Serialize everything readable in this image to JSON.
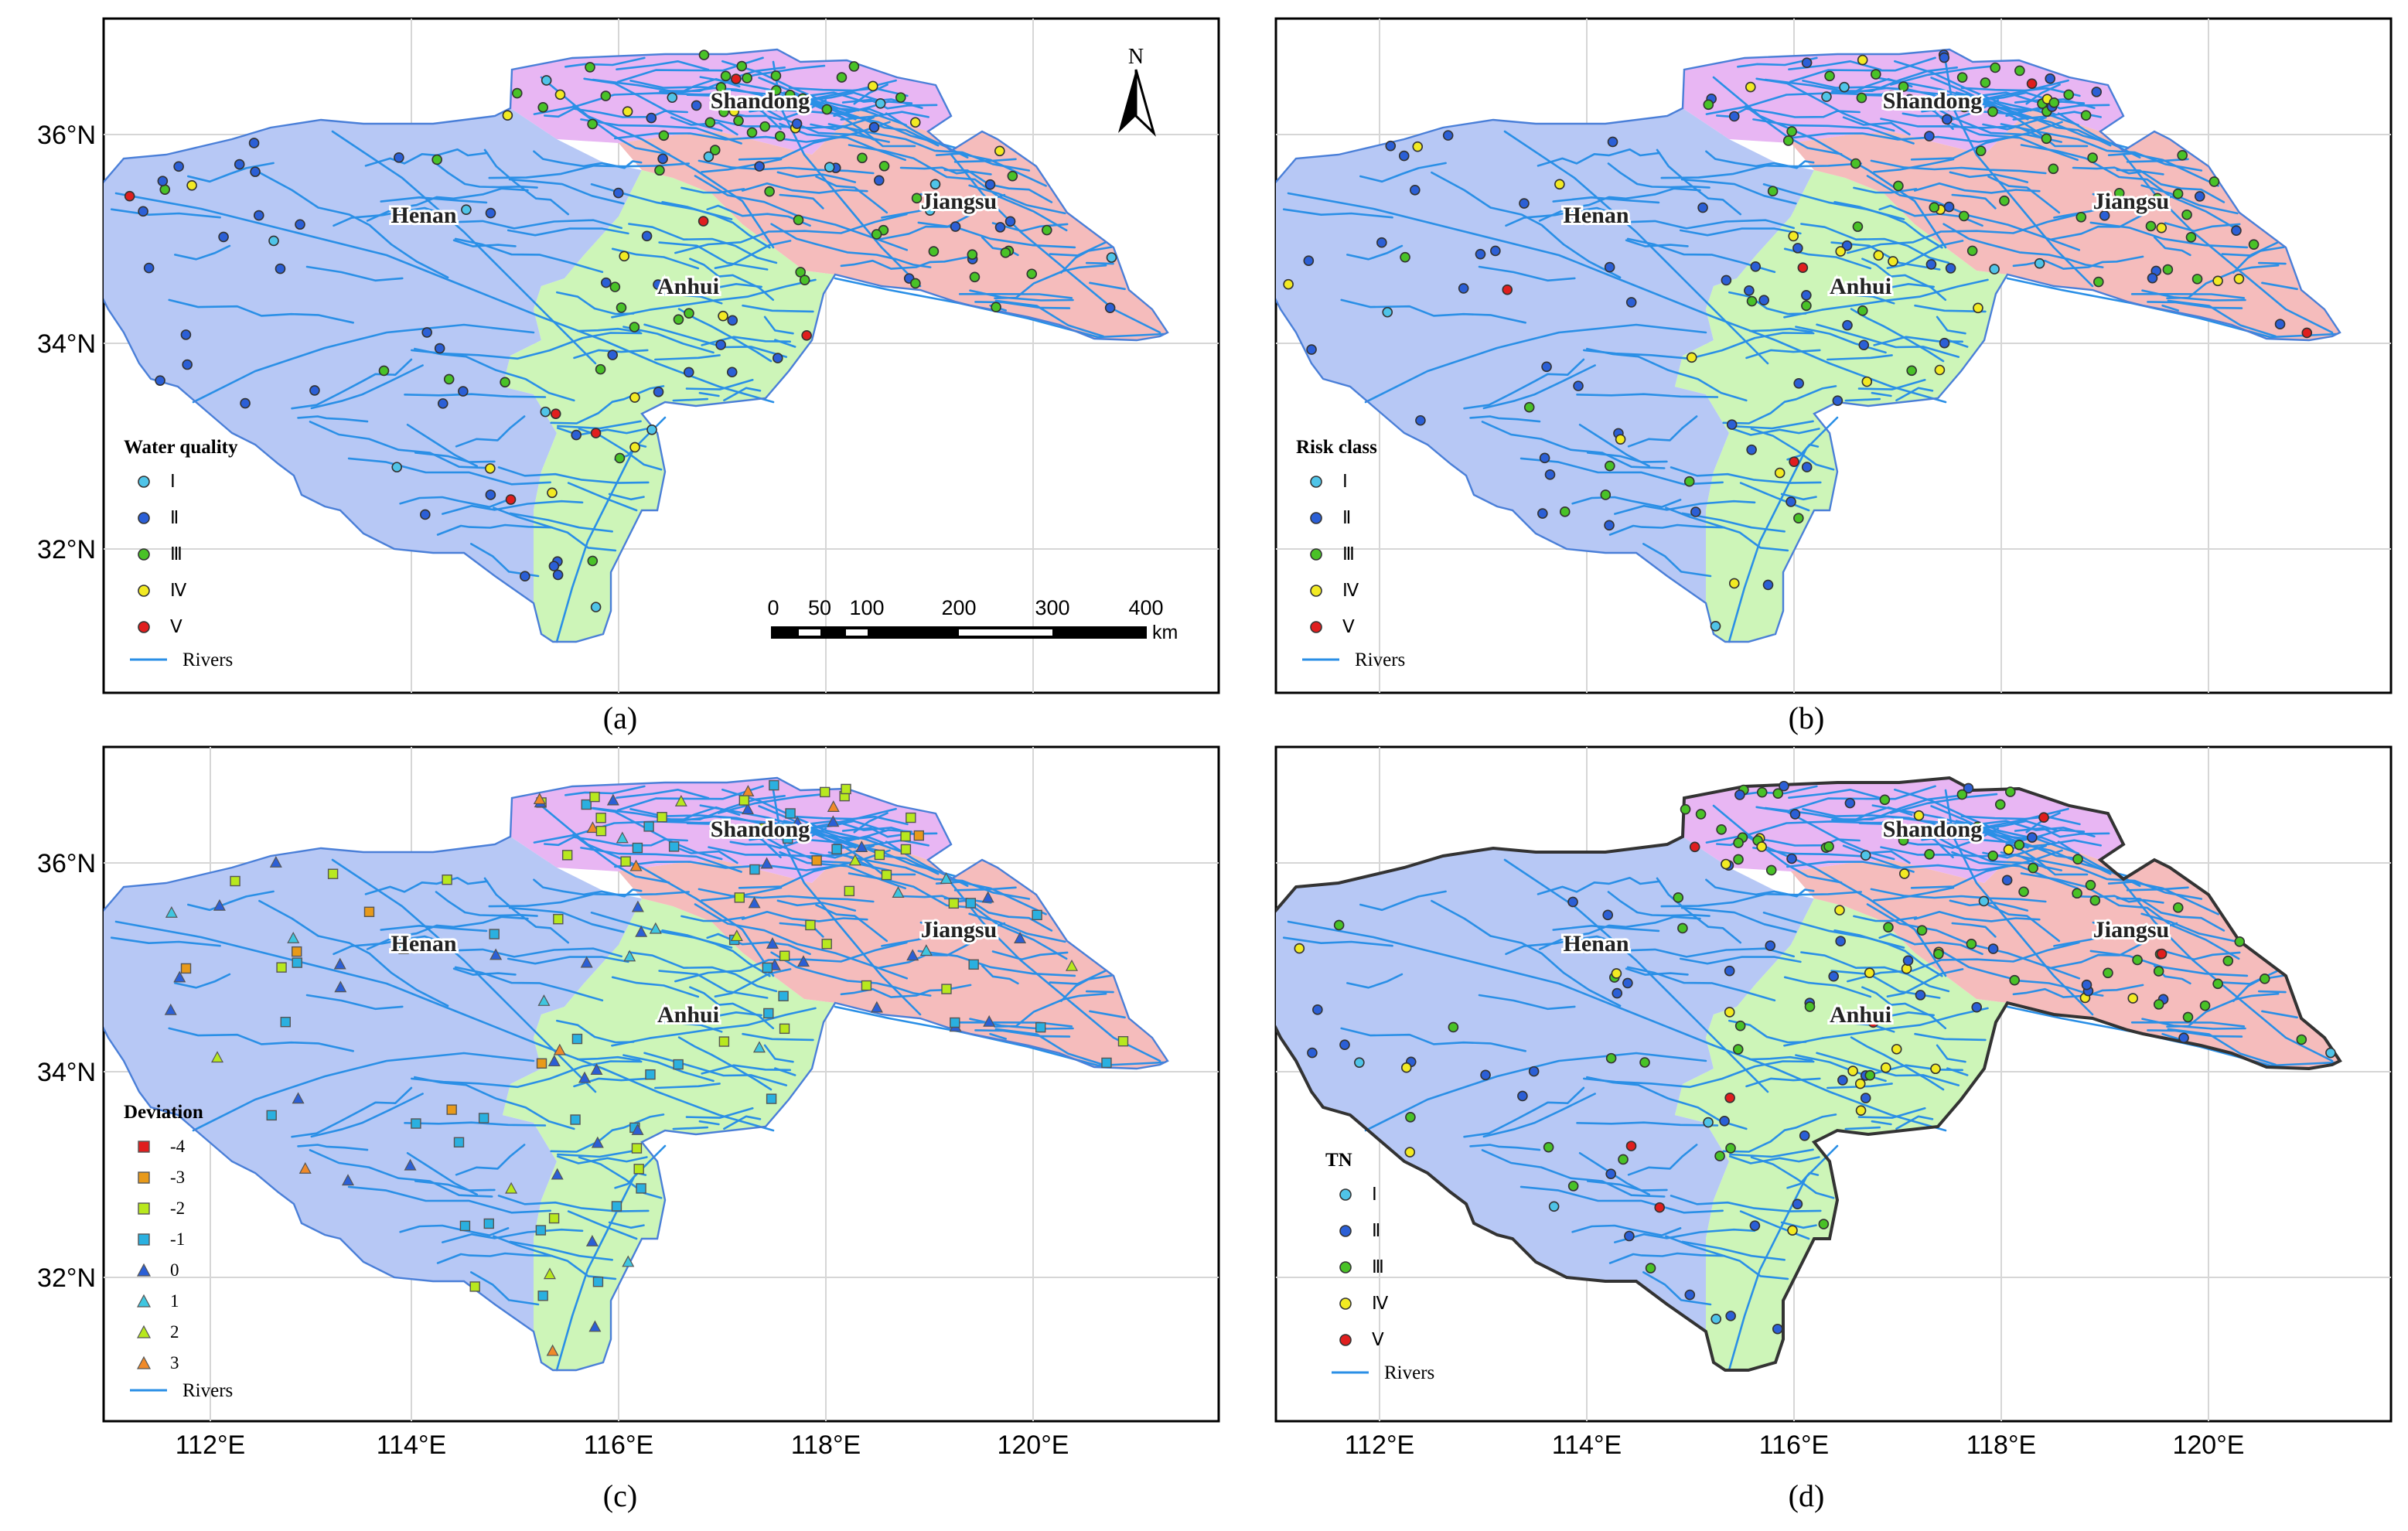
{
  "figure": {
    "latitude_labels": [
      "36°N",
      "34°N",
      "32°N"
    ],
    "longitude_labels": [
      "112°E",
      "114°E",
      "116°E",
      "118°E",
      "120°E"
    ],
    "north_arrow_label": "N",
    "scale_bar": {
      "ticks": [
        "0",
        "50",
        "100",
        "200",
        "300",
        "400"
      ],
      "unit": "km"
    },
    "province_labels": [
      "Shandong",
      "Henan",
      "Anhui",
      "Jiangsu"
    ],
    "province_colors": {
      "Shandong": "#e8b6f3",
      "Henan": "#b7c8f5",
      "Anhui": "#cdf5b8",
      "Jiangsu": "#f5bcbc"
    },
    "river_color": "#2a8fe6",
    "rivers_label": "Rivers"
  },
  "panels": [
    {
      "id": "a",
      "caption": "(a)",
      "legend_title": "Water quality",
      "legend": [
        {
          "label": "Ⅰ",
          "color": "#4fc4e8",
          "shape": "circle"
        },
        {
          "label": "Ⅱ",
          "color": "#2b5fd6",
          "shape": "circle"
        },
        {
          "label": "Ⅲ",
          "color": "#49c227",
          "shape": "circle"
        },
        {
          "label": "Ⅳ",
          "color": "#f2ea23",
          "shape": "circle"
        },
        {
          "label": "Ⅴ",
          "color": "#e01e1e",
          "shape": "circle"
        }
      ]
    },
    {
      "id": "b",
      "caption": "(b)",
      "legend_title": "Risk class",
      "legend": [
        {
          "label": "Ⅰ",
          "color": "#4fc4e8",
          "shape": "circle"
        },
        {
          "label": "Ⅱ",
          "color": "#2b5fd6",
          "shape": "circle"
        },
        {
          "label": "Ⅲ",
          "color": "#49c227",
          "shape": "circle"
        },
        {
          "label": "Ⅳ",
          "color": "#f2ea23",
          "shape": "circle"
        },
        {
          "label": "Ⅴ",
          "color": "#e01e1e",
          "shape": "circle"
        }
      ]
    },
    {
      "id": "c",
      "caption": "(c)",
      "legend_title": "Deviation",
      "legend": [
        {
          "label": "-4",
          "color": "#e01e1e",
          "shape": "square"
        },
        {
          "label": "-3",
          "color": "#e89a1a",
          "shape": "square"
        },
        {
          "label": "-2",
          "color": "#b8e81e",
          "shape": "square"
        },
        {
          "label": "-1",
          "color": "#2ab0e0",
          "shape": "square"
        },
        {
          "label": "0",
          "color": "#2b5fd6",
          "shape": "triangle"
        },
        {
          "label": "1",
          "color": "#3fc6e0",
          "shape": "triangle"
        },
        {
          "label": "2",
          "color": "#b8e81e",
          "shape": "triangle"
        },
        {
          "label": "3",
          "color": "#f08a2a",
          "shape": "triangle"
        }
      ]
    },
    {
      "id": "d",
      "caption": "(d)",
      "legend_title": "TN",
      "legend": [
        {
          "label": "Ⅰ",
          "color": "#4fc4e8",
          "shape": "circle"
        },
        {
          "label": "Ⅱ",
          "color": "#2b5fd6",
          "shape": "circle"
        },
        {
          "label": "Ⅲ",
          "color": "#49c227",
          "shape": "circle"
        },
        {
          "label": "Ⅳ",
          "color": "#f2ea23",
          "shape": "circle"
        },
        {
          "label": "Ⅴ",
          "color": "#e01e1e",
          "shape": "circle"
        }
      ]
    }
  ]
}
